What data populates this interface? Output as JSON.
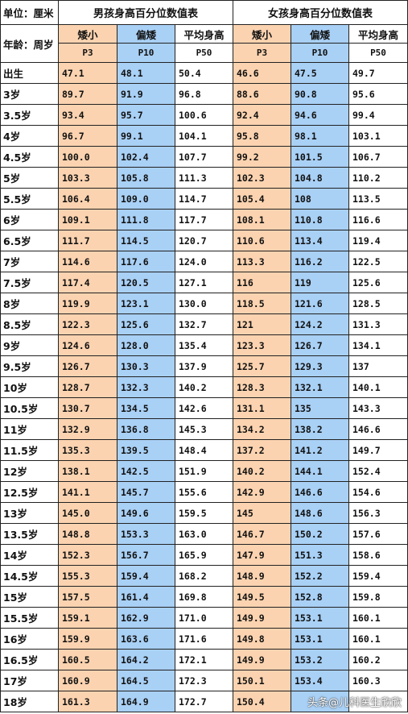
{
  "header": {
    "unit_label": "单位：厘米",
    "age_label": "年龄：周岁",
    "boys_title": "男孩身高百分位数值表",
    "girls_title": "女孩身高百分位数值表",
    "columns": [
      {
        "name": "矮小",
        "pct": "P3"
      },
      {
        "name": "偏矮",
        "pct": "P10"
      },
      {
        "name": "平均身高",
        "pct": "P50"
      }
    ]
  },
  "colors": {
    "short": "#fbd3b0",
    "below_avg": "#a9d0f5",
    "average": "#ffffff"
  },
  "rows": [
    {
      "age": "出生",
      "b3": "47.1",
      "b10": "48.1",
      "b50": "50.4",
      "g3": "46.6",
      "g10": "47.5",
      "g50": "49.7"
    },
    {
      "age": "3岁",
      "b3": "89.7",
      "b10": "91.9",
      "b50": "96.8",
      "g3": "88.6",
      "g10": "90.8",
      "g50": "95.6"
    },
    {
      "age": "3.5岁",
      "b3": "93.4",
      "b10": "95.7",
      "b50": "100.6",
      "g3": "92.4",
      "g10": "94.6",
      "g50": "99.4"
    },
    {
      "age": "4岁",
      "b3": "96.7",
      "b10": "99.1",
      "b50": "104.1",
      "g3": "95.8",
      "g10": "98.1",
      "g50": "103.1"
    },
    {
      "age": "4.5岁",
      "b3": "100.0",
      "b10": "102.4",
      "b50": "107.7",
      "g3": "99.2",
      "g10": "101.5",
      "g50": "106.7"
    },
    {
      "age": "5岁",
      "b3": "103.3",
      "b10": "105.8",
      "b50": "111.3",
      "g3": "102.3",
      "g10": "104.8",
      "g50": "110.2"
    },
    {
      "age": "5.5岁",
      "b3": "106.4",
      "b10": "109.0",
      "b50": "114.7",
      "g3": "105.4",
      "g10": "108",
      "g50": "113.5"
    },
    {
      "age": "6岁",
      "b3": "109.1",
      "b10": "111.8",
      "b50": "117.7",
      "g3": "108.1",
      "g10": "110.8",
      "g50": "116.6"
    },
    {
      "age": "6.5岁",
      "b3": "111.7",
      "b10": "114.5",
      "b50": "120.7",
      "g3": "110.6",
      "g10": "113.4",
      "g50": "119.4"
    },
    {
      "age": "7岁",
      "b3": "114.6",
      "b10": "117.6",
      "b50": "124.0",
      "g3": "113.3",
      "g10": "116.2",
      "g50": "122.5"
    },
    {
      "age": "7.5岁",
      "b3": "117.4",
      "b10": "120.5",
      "b50": "127.1",
      "g3": "116",
      "g10": "119",
      "g50": "125.6"
    },
    {
      "age": "8岁",
      "b3": "119.9",
      "b10": "123.1",
      "b50": "130.0",
      "g3": "118.5",
      "g10": "121.6",
      "g50": "128.5"
    },
    {
      "age": "8.5岁",
      "b3": "122.3",
      "b10": "125.6",
      "b50": "132.7",
      "g3": "121",
      "g10": "124.2",
      "g50": "131.3"
    },
    {
      "age": "9岁",
      "b3": "124.6",
      "b10": "128.0",
      "b50": "135.4",
      "g3": "123.3",
      "g10": "126.7",
      "g50": "134.1"
    },
    {
      "age": "9.5岁",
      "b3": "126.7",
      "b10": "130.3",
      "b50": "137.9",
      "g3": "125.7",
      "g10": "129.3",
      "g50": "137"
    },
    {
      "age": "10岁",
      "b3": "128.7",
      "b10": "132.3",
      "b50": "140.2",
      "g3": "128.3",
      "g10": "132.1",
      "g50": "140.1"
    },
    {
      "age": "10.5岁",
      "b3": "130.7",
      "b10": "134.5",
      "b50": "142.6",
      "g3": "131.1",
      "g10": "135",
      "g50": "143.3"
    },
    {
      "age": "11岁",
      "b3": "132.9",
      "b10": "136.8",
      "b50": "145.3",
      "g3": "134.2",
      "g10": "138.2",
      "g50": "146.6"
    },
    {
      "age": "11.5岁",
      "b3": "135.3",
      "b10": "139.5",
      "b50": "148.4",
      "g3": "137.2",
      "g10": "141.2",
      "g50": "149.7"
    },
    {
      "age": "12岁",
      "b3": "138.1",
      "b10": "142.5",
      "b50": "151.9",
      "g3": "140.2",
      "g10": "144.1",
      "g50": "152.4"
    },
    {
      "age": "12.5岁",
      "b3": "141.1",
      "b10": "145.7",
      "b50": "155.6",
      "g3": "142.9",
      "g10": "146.6",
      "g50": "154.6"
    },
    {
      "age": "13岁",
      "b3": "145.0",
      "b10": "149.6",
      "b50": "159.5",
      "g3": "145",
      "g10": "148.6",
      "g50": "156.3"
    },
    {
      "age": "13.5岁",
      "b3": "148.8",
      "b10": "153.3",
      "b50": "163.0",
      "g3": "146.7",
      "g10": "150.2",
      "g50": "157.6"
    },
    {
      "age": "14岁",
      "b3": "152.3",
      "b10": "156.7",
      "b50": "165.9",
      "g3": "147.9",
      "g10": "151.3",
      "g50": "158.6"
    },
    {
      "age": "14.5岁",
      "b3": "155.3",
      "b10": "159.4",
      "b50": "168.2",
      "g3": "148.9",
      "g10": "152.2",
      "g50": "159.4"
    },
    {
      "age": "15岁",
      "b3": "157.5",
      "b10": "161.4",
      "b50": "169.8",
      "g3": "149.5",
      "g10": "152.8",
      "g50": "159.8"
    },
    {
      "age": "15.5岁",
      "b3": "159.1",
      "b10": "162.9",
      "b50": "171.0",
      "g3": "149.9",
      "g10": "153.1",
      "g50": "160.1"
    },
    {
      "age": "16岁",
      "b3": "159.9",
      "b10": "163.6",
      "b50": "171.6",
      "g3": "149.8",
      "g10": "153.1",
      "g50": "160.1"
    },
    {
      "age": "16.5岁",
      "b3": "160.5",
      "b10": "164.2",
      "b50": "172.1",
      "g3": "149.9",
      "g10": "153.2",
      "g50": "160.2"
    },
    {
      "age": "17岁",
      "b3": "160.9",
      "b10": "164.5",
      "b50": "172.3",
      "g3": "150.1",
      "g10": "153.4",
      "g50": "160.3"
    },
    {
      "age": "18岁",
      "b3": "161.3",
      "b10": "164.9",
      "b50": "172.7",
      "g3": "150.4",
      "g10": "",
      "g50": ""
    }
  ],
  "watermark": "头条@儿科医生欣欣"
}
